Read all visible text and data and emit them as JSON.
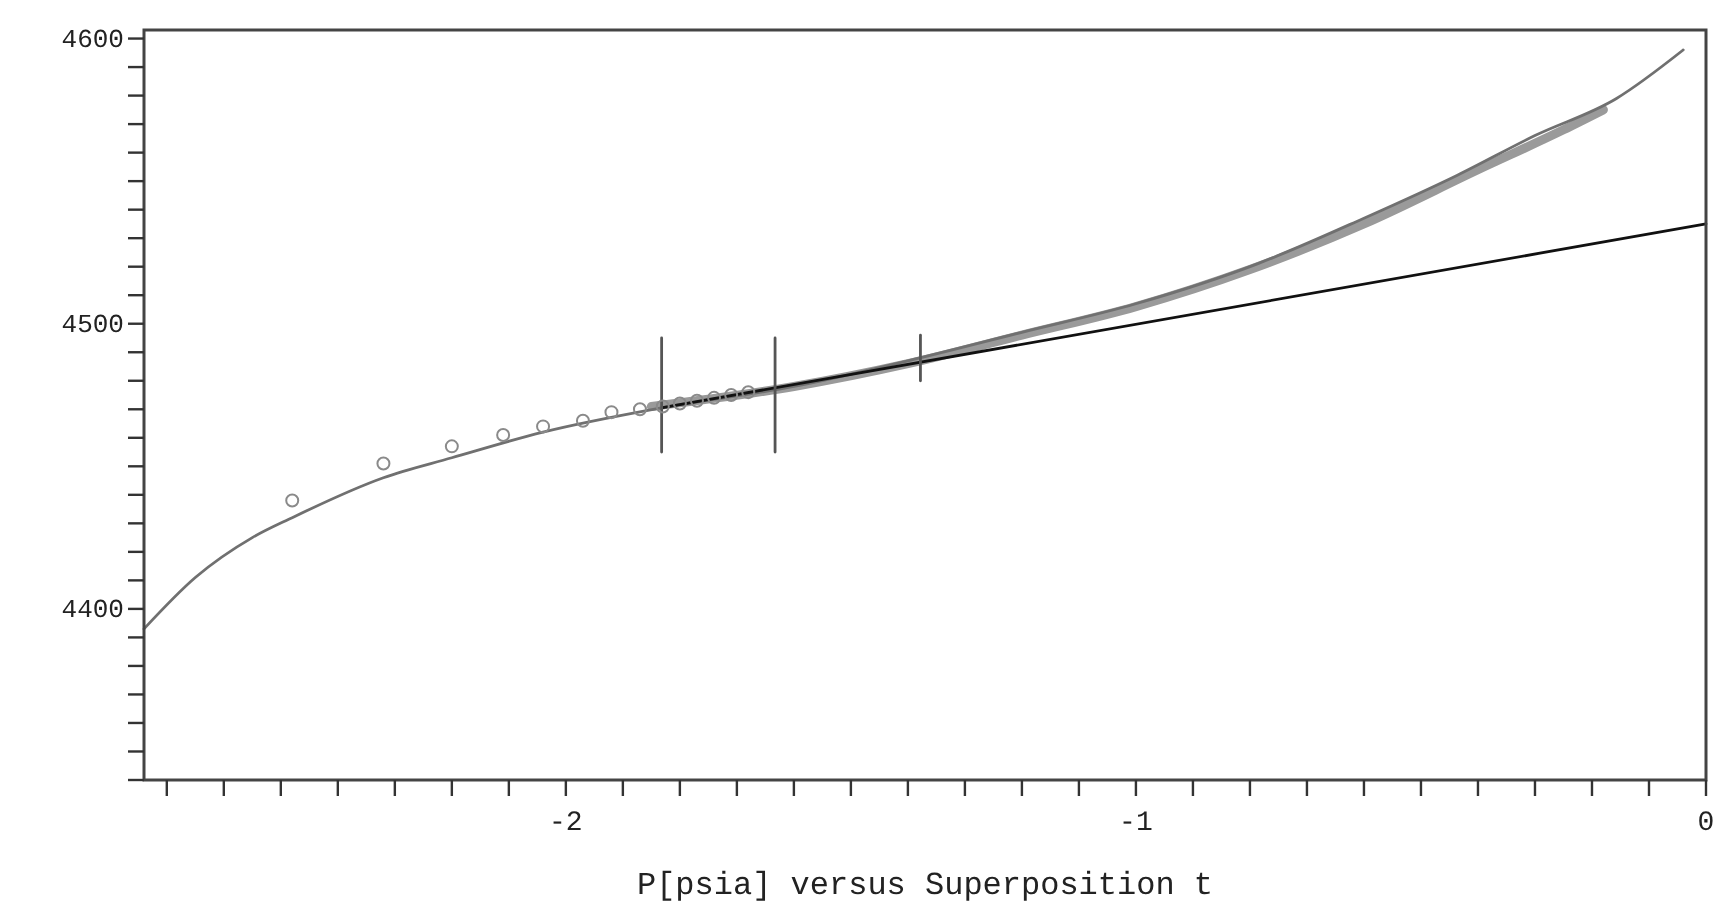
{
  "chart_data": {
    "type": "line",
    "xlabel": "P[psia] versus Superposition t",
    "xlim": [
      -2.74,
      0
    ],
    "ylim": [
      4340,
      4603
    ],
    "xticks": [
      {
        "value": -2.7,
        "label": null
      },
      {
        "value": -2.6,
        "label": null
      },
      {
        "value": -2.5,
        "label": null
      },
      {
        "value": -2.4,
        "label": null
      },
      {
        "value": -2.3,
        "label": null
      },
      {
        "value": -2.2,
        "label": null
      },
      {
        "value": -2.1,
        "label": null
      },
      -2,
      {
        "value": -1.9,
        "label": null
      },
      {
        "value": -1.8,
        "label": null
      },
      {
        "value": -1.7,
        "label": null
      },
      {
        "value": -1.6,
        "label": null
      },
      {
        "value": -1.5,
        "label": null
      },
      {
        "value": -1.4,
        "label": null
      },
      {
        "value": -1.3,
        "label": null
      },
      {
        "value": -1.2,
        "label": null
      },
      {
        "value": -1.1,
        "label": null
      },
      -1,
      {
        "value": -0.9,
        "label": null
      },
      {
        "value": -0.8,
        "label": null
      },
      {
        "value": -0.7,
        "label": null
      },
      {
        "value": -0.6,
        "label": null
      },
      {
        "value": -0.5,
        "label": null
      },
      {
        "value": -0.4,
        "label": null
      },
      {
        "value": -0.3,
        "label": null
      },
      {
        "value": -0.2,
        "label": null
      },
      {
        "value": -0.1,
        "label": null
      },
      0
    ],
    "yticks": [
      {
        "value": 4340,
        "label": null
      },
      {
        "value": 4350,
        "label": null
      },
      {
        "value": 4360,
        "label": null
      },
      {
        "value": 4370,
        "label": null
      },
      {
        "value": 4380,
        "label": null
      },
      {
        "value": 4390,
        "label": null
      },
      4400,
      {
        "value": 4410,
        "label": null
      },
      {
        "value": 4420,
        "label": null
      },
      {
        "value": 4430,
        "label": null
      },
      {
        "value": 4440,
        "label": null
      },
      {
        "value": 4450,
        "label": null
      },
      {
        "value": 4460,
        "label": null
      },
      {
        "value": 4470,
        "label": null
      },
      {
        "value": 4480,
        "label": null
      },
      {
        "value": 4490,
        "label": null
      },
      4500,
      {
        "value": 4510,
        "label": null
      },
      {
        "value": 4520,
        "label": null
      },
      {
        "value": 4530,
        "label": null
      },
      {
        "value": 4540,
        "label": null
      },
      {
        "value": 4550,
        "label": null
      },
      {
        "value": 4560,
        "label": null
      },
      {
        "value": 4570,
        "label": null
      },
      {
        "value": 4580,
        "label": null
      },
      {
        "value": 4590,
        "label": null
      },
      4600
    ],
    "grid": false,
    "series": [
      {
        "type": "scatter",
        "marker": "circle",
        "color": "#8a8a8a",
        "x": [
          -2.48,
          -2.32,
          -2.2,
          -2.11,
          -2.04,
          -1.97,
          -1.92,
          -1.87,
          -1.83,
          -1.8,
          -1.77,
          -1.74,
          -1.71,
          -1.68
        ],
        "values": [
          4438,
          4451,
          4457,
          4461,
          4464,
          4466,
          4469,
          4470,
          4471,
          4472,
          4473,
          4474,
          4475,
          4476
        ]
      },
      {
        "color": "#9a9a9a",
        "x": [
          -1.85,
          -1.6,
          -1.4,
          -1.2,
          -1.0,
          -0.8,
          -0.6,
          -0.4,
          -0.25,
          -0.18
        ],
        "values": [
          4471,
          4478,
          4486,
          4496,
          4506,
          4519,
          4535,
          4554,
          4568,
          4575
        ]
      },
      {
        "color": "#707070",
        "x": [
          -2.74,
          -2.65,
          -2.55,
          -2.48,
          -2.32,
          -2.2,
          -2.04,
          -1.83,
          -1.6,
          -1.4,
          -1.2,
          -1.0,
          -0.787,
          -0.6,
          -0.437,
          -0.3,
          -0.157,
          -0.04
        ],
        "values": [
          4393,
          4411,
          4425,
          4432,
          4446,
          4453,
          4462,
          4470.6,
          4478,
          4487,
          4497,
          4507,
          4521,
          4537,
          4552,
          4566,
          4579,
          4596
        ]
      },
      {
        "color": "#111111",
        "x": [
          -1.83,
          0
        ],
        "values": [
          4470.6,
          4535
        ]
      },
      {
        "color": "#555555",
        "x": [
          -1.832,
          -1.832
        ],
        "values": [
          4455,
          4495
        ]
      },
      {
        "color": "#555555",
        "x": [
          -1.633,
          -1.633
        ],
        "values": [
          4455,
          4495
        ]
      },
      {
        "color": "#555555",
        "x": [
          -1.378,
          -1.378
        ],
        "values": [
          4480,
          4496
        ]
      }
    ]
  }
}
